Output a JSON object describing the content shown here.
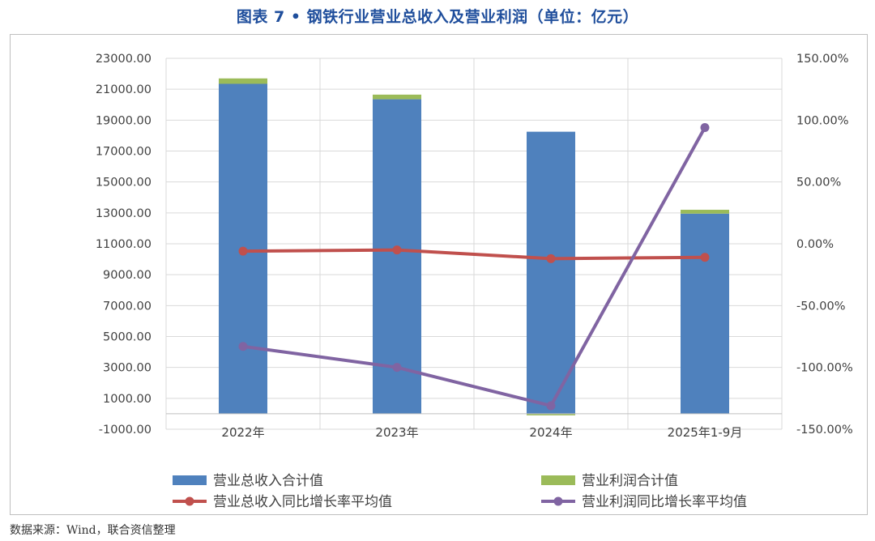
{
  "title": "图表 7 • 钢铁行业营业总收入及营业利润（单位：亿元）",
  "source": "数据来源：Wind，联合资信整理",
  "colors": {
    "revenue_bar": "#4f81bd",
    "profit_bar": "#9bbb59",
    "revenue_growth_line": "#c0504d",
    "profit_growth_line": "#8064a2"
  },
  "chart_data": {
    "type": "bar",
    "title": "钢铁行业营业总收入及营业利润（单位：亿元）",
    "categories": [
      "2022年",
      "2023年",
      "2024年",
      "2025年1-9月"
    ],
    "y_left": {
      "lim": [
        -1000,
        23000
      ],
      "ticks": [
        -1000,
        1000,
        3000,
        5000,
        7000,
        9000,
        11000,
        13000,
        15000,
        17000,
        19000,
        21000,
        23000
      ],
      "tick_labels": [
        "-1000.00",
        "1000.00",
        "3000.00",
        "5000.00",
        "7000.00",
        "9000.00",
        "11000.00",
        "13000.00",
        "15000.00",
        "17000.00",
        "19000.00",
        "21000.00",
        "23000.00"
      ]
    },
    "y_right": {
      "lim": [
        -150,
        150
      ],
      "ticks": [
        -150,
        -100,
        -50,
        0,
        50,
        100,
        150
      ],
      "tick_labels": [
        "-150.00%",
        "-100.00%",
        "-50.00%",
        "0.00%",
        "50.00%",
        "100.00%",
        "150.00%"
      ]
    },
    "series": [
      {
        "name": "营业总收入合计值",
        "kind": "bar",
        "axis": "left",
        "stack": "s",
        "color": "#4f81bd",
        "values": [
          21350,
          20350,
          18250,
          12950
        ]
      },
      {
        "name": "营业利润合计值",
        "kind": "bar",
        "axis": "left",
        "stack": "s",
        "color": "#9bbb59",
        "values": [
          350,
          300,
          -100,
          250
        ]
      },
      {
        "name": "营业总收入同比增长率平均值",
        "kind": "line",
        "axis": "right",
        "color": "#c0504d",
        "values": [
          -6,
          -5,
          -12,
          -11
        ]
      },
      {
        "name": "营业利润同比增长率平均值",
        "kind": "line",
        "axis": "right",
        "color": "#8064a2",
        "values": [
          -83,
          -100,
          -131,
          94
        ]
      }
    ],
    "grid": true,
    "legend": "bottom"
  }
}
